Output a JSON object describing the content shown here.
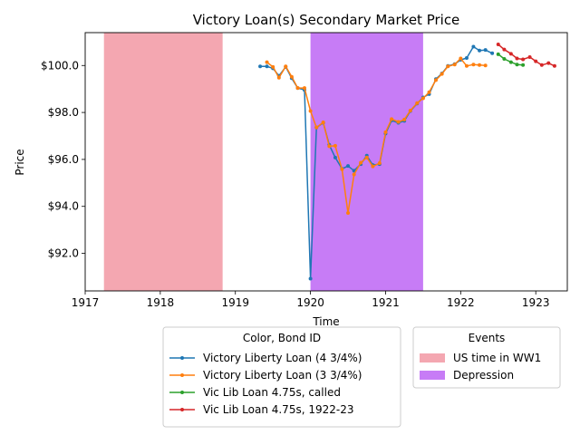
{
  "chart_data": {
    "type": "line",
    "title": "Victory Loan(s) Secondary Market Price",
    "xlabel": "Time",
    "ylabel": "Price",
    "xlim": [
      1917.0,
      1923.42
    ],
    "ylim": [
      90.4,
      101.4
    ],
    "x_ticks": [
      {
        "value": 1917,
        "label": "1917"
      },
      {
        "value": 1918,
        "label": "1918"
      },
      {
        "value": 1919,
        "label": "1919"
      },
      {
        "value": 1920,
        "label": "1920"
      },
      {
        "value": 1921,
        "label": "1921"
      },
      {
        "value": 1922,
        "label": "1922"
      },
      {
        "value": 1923,
        "label": "1923"
      }
    ],
    "y_ticks": [
      {
        "value": 92,
        "label": "$92.0"
      },
      {
        "value": 94,
        "label": "$94.0"
      },
      {
        "value": 96,
        "label": "$96.0"
      },
      {
        "value": 98,
        "label": "$98.0"
      },
      {
        "value": 100,
        "label": "$100.0"
      }
    ],
    "grid": false,
    "events": [
      {
        "name": "US time in WW1",
        "start": 1917.25,
        "end": 1918.83,
        "color": "#f4a7b1"
      },
      {
        "name": "Depression",
        "start": 1920.0,
        "end": 1921.5,
        "color": "#c77cf6"
      }
    ],
    "series": [
      {
        "name": "Victory Liberty Loan (4 3/4%)",
        "color": "#1f77b4",
        "x": [
          1919.33,
          1919.42,
          1919.5,
          1919.58,
          1919.67,
          1919.75,
          1919.83,
          1919.92,
          1920.0,
          1920.08,
          1920.17,
          1920.25,
          1920.33,
          1920.42,
          1920.5,
          1920.58,
          1920.67,
          1920.75,
          1920.83,
          1920.92,
          1921.0,
          1921.08,
          1921.17,
          1921.25,
          1921.33,
          1921.42,
          1921.5,
          1921.58,
          1921.67,
          1921.75,
          1921.83,
          1921.92,
          1922.0,
          1922.08,
          1922.17,
          1922.25,
          1922.33,
          1922.42
        ],
        "y": [
          99.96,
          99.96,
          99.88,
          99.56,
          99.94,
          99.46,
          99.04,
          98.96,
          90.92,
          97.36,
          97.56,
          96.62,
          96.08,
          95.6,
          95.72,
          95.52,
          95.8,
          96.16,
          95.76,
          95.8,
          97.1,
          97.66,
          97.56,
          97.64,
          98.06,
          98.38,
          98.64,
          98.78,
          99.42,
          99.66,
          99.98,
          100.06,
          100.24,
          100.32,
          100.8,
          100.64,
          100.66,
          100.52
        ]
      },
      {
        "name": "Victory Liberty Loan (3 3/4%)",
        "color": "#ff7f0e",
        "x": [
          1919.42,
          1919.5,
          1919.58,
          1919.67,
          1919.75,
          1919.83,
          1919.92,
          1920.0,
          1920.08,
          1920.17,
          1920.25,
          1920.33,
          1920.42,
          1920.5,
          1920.58,
          1920.67,
          1920.75,
          1920.83,
          1920.92,
          1921.0,
          1921.08,
          1921.17,
          1921.25,
          1921.33,
          1921.42,
          1921.5,
          1921.58,
          1921.67,
          1921.75,
          1921.83,
          1921.92,
          1922.0,
          1922.08,
          1922.17,
          1922.25,
          1922.33
        ],
        "y": [
          100.14,
          99.94,
          99.48,
          99.96,
          99.52,
          99.04,
          99.04,
          98.06,
          97.36,
          97.58,
          96.56,
          96.58,
          95.58,
          93.72,
          95.36,
          95.86,
          96.08,
          95.7,
          95.84,
          97.16,
          97.72,
          97.6,
          97.7,
          98.08,
          98.4,
          98.6,
          98.86,
          99.38,
          99.64,
          99.96,
          100.04,
          100.3,
          99.98,
          100.04,
          100.02,
          100.0
        ]
      },
      {
        "name": "Vic Lib Loan 4.75s, called",
        "color": "#2ca02c",
        "x": [
          1922.5,
          1922.58,
          1922.67,
          1922.75,
          1922.83
        ],
        "y": [
          100.48,
          100.28,
          100.14,
          100.04,
          100.02
        ]
      },
      {
        "name": "Vic Lib Loan 4.75s, 1922-23",
        "color": "#d62728",
        "x": [
          1922.5,
          1922.58,
          1922.67,
          1922.75,
          1922.83,
          1922.92,
          1923.0,
          1923.08,
          1923.17,
          1923.25
        ],
        "y": [
          100.9,
          100.68,
          100.5,
          100.3,
          100.26,
          100.36,
          100.18,
          100.02,
          100.1,
          99.98
        ]
      }
    ],
    "legends": [
      {
        "title": "Color, Bond ID",
        "kind": "series"
      },
      {
        "title": "Events",
        "kind": "events"
      }
    ]
  }
}
